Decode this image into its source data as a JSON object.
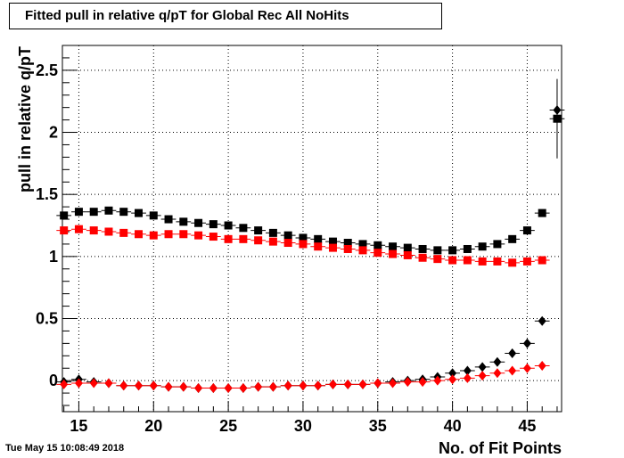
{
  "header": {
    "title": "Fitted pull in relative q/pT for Global Rec All NoHits"
  },
  "footer": {
    "timestamp": "Tue May 15 10:08:49 2018"
  },
  "chart_data": {
    "type": "scatter",
    "title": "Fitted pull in relative q/pT for Global Rec All NoHits",
    "xlabel": "No. of Fit Points",
    "ylabel": "pull in relative q/pT",
    "xlim": [
      13.9,
      47.3
    ],
    "ylim": [
      -0.25,
      2.7
    ],
    "grid": true,
    "x_ticks": [
      15,
      20,
      25,
      30,
      35,
      40,
      45
    ],
    "y_ticks": [
      0,
      0.5,
      1,
      1.5,
      2,
      2.5
    ],
    "series": [
      {
        "marker": "square",
        "color": "#000000",
        "x": [
          14,
          15,
          16,
          17,
          18,
          19,
          20,
          21,
          22,
          23,
          24,
          25,
          26,
          27,
          28,
          29,
          30,
          31,
          32,
          33,
          34,
          35,
          36,
          37,
          38,
          39,
          40,
          41,
          42,
          43,
          44,
          45,
          46,
          47
        ],
        "y": [
          1.33,
          1.36,
          1.36,
          1.37,
          1.36,
          1.35,
          1.33,
          1.3,
          1.28,
          1.27,
          1.26,
          1.25,
          1.23,
          1.21,
          1.19,
          1.17,
          1.15,
          1.14,
          1.12,
          1.11,
          1.1,
          1.09,
          1.08,
          1.07,
          1.06,
          1.05,
          1.05,
          1.06,
          1.08,
          1.1,
          1.14,
          1.21,
          1.35,
          2.11
        ]
      },
      {
        "marker": "square",
        "color": "#ff0000",
        "x": [
          14,
          15,
          16,
          17,
          18,
          19,
          20,
          21,
          22,
          23,
          24,
          25,
          26,
          27,
          28,
          29,
          30,
          31,
          32,
          33,
          34,
          35,
          36,
          37,
          38,
          39,
          40,
          41,
          42,
          43,
          44,
          45,
          46
        ],
        "y": [
          1.21,
          1.22,
          1.21,
          1.2,
          1.19,
          1.18,
          1.17,
          1.18,
          1.18,
          1.17,
          1.16,
          1.14,
          1.14,
          1.13,
          1.12,
          1.11,
          1.1,
          1.08,
          1.07,
          1.06,
          1.05,
          1.03,
          1.02,
          1.01,
          0.99,
          0.98,
          0.97,
          0.97,
          0.96,
          0.96,
          0.95,
          0.96,
          0.97
        ]
      },
      {
        "marker": "diamond",
        "color": "#000000",
        "x": [
          14,
          15,
          16,
          17,
          18,
          19,
          20,
          21,
          22,
          23,
          24,
          25,
          26,
          27,
          28,
          29,
          30,
          31,
          32,
          33,
          34,
          35,
          36,
          37,
          38,
          39,
          40,
          41,
          42,
          43,
          44,
          45,
          46,
          47
        ],
        "y": [
          -0.01,
          0.01,
          -0.01,
          -0.02,
          -0.04,
          -0.04,
          -0.04,
          -0.05,
          -0.05,
          -0.06,
          -0.06,
          -0.06,
          -0.06,
          -0.05,
          -0.05,
          -0.04,
          -0.04,
          -0.04,
          -0.03,
          -0.03,
          -0.03,
          -0.02,
          -0.01,
          0.0,
          0.01,
          0.03,
          0.06,
          0.08,
          0.11,
          0.15,
          0.22,
          0.3,
          0.48,
          2.18
        ]
      },
      {
        "marker": "diamond",
        "color": "#ff0000",
        "x": [
          14,
          15,
          16,
          17,
          18,
          19,
          20,
          21,
          22,
          23,
          24,
          25,
          26,
          27,
          28,
          29,
          30,
          31,
          32,
          33,
          34,
          35,
          36,
          37,
          38,
          39,
          40,
          41,
          42,
          43,
          44,
          45,
          46
        ],
        "y": [
          -0.03,
          -0.02,
          -0.02,
          -0.02,
          -0.04,
          -0.04,
          -0.04,
          -0.05,
          -0.05,
          -0.06,
          -0.06,
          -0.06,
          -0.06,
          -0.05,
          -0.05,
          -0.04,
          -0.04,
          -0.04,
          -0.03,
          -0.03,
          -0.03,
          -0.02,
          -0.02,
          -0.01,
          -0.01,
          0.0,
          0.01,
          0.02,
          0.04,
          0.06,
          0.08,
          0.1,
          0.12
        ]
      }
    ],
    "outlier_error_bar": {
      "x": 47,
      "ylow": 1.79,
      "yhigh": 2.43
    }
  }
}
